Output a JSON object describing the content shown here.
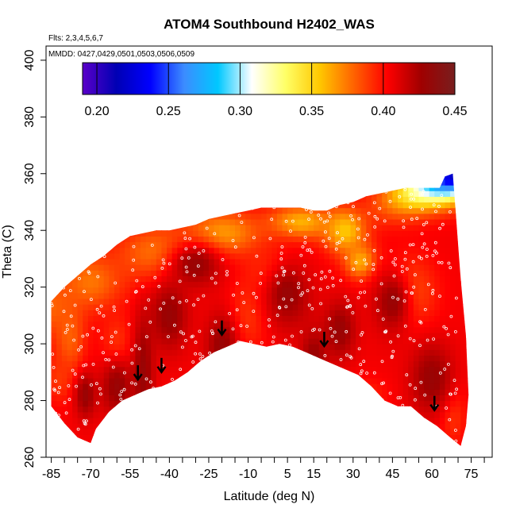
{
  "chart_data": {
    "type": "heatmap",
    "title": "ATOM4 Southbound H2402_WAS",
    "flights_note": "Flts: 2,3,4,5,6,7",
    "dates_note": "MMDD: 0427,0429,0501,0503,0506,0509",
    "xlabel": "Latitude (deg N)",
    "ylabel": "Theta (C)",
    "xlim": [
      -87,
      83
    ],
    "ylim": [
      260,
      405
    ],
    "x_ticks": [
      -85,
      -70,
      -55,
      -40,
      -25,
      -10,
      5,
      15,
      30,
      45,
      60,
      75
    ],
    "y_ticks": [
      260,
      280,
      300,
      320,
      340,
      360,
      380,
      400
    ],
    "colorbar": {
      "min": 0.19,
      "max": 0.45,
      "ticks": [
        0.2,
        0.25,
        0.3,
        0.35,
        0.4,
        0.45
      ],
      "tick_labels": [
        "0.20",
        "0.25",
        "0.30",
        "0.35",
        "0.40",
        "0.45"
      ],
      "colors": [
        "#5a00c8",
        "#0000b4",
        "#0000ff",
        "#3c8cff",
        "#00c8ff",
        "#ffffff",
        "#ffff66",
        "#ffc800",
        "#ff6400",
        "#ff0000",
        "#a00000",
        "#781e1e"
      ]
    },
    "lower_boundary": [
      [
        -85,
        278
      ],
      [
        -80,
        272
      ],
      [
        -75,
        267
      ],
      [
        -70,
        265
      ],
      [
        -68,
        270
      ],
      [
        -63,
        276
      ],
      [
        -58,
        280
      ],
      [
        -53,
        282
      ],
      [
        -48,
        284
      ],
      [
        -43,
        285
      ],
      [
        -38,
        287
      ],
      [
        -33,
        290
      ],
      [
        -28,
        294
      ],
      [
        -23,
        297
      ],
      [
        -18,
        299
      ],
      [
        -13,
        301
      ],
      [
        -8,
        300
      ],
      [
        -3,
        299
      ],
      [
        2,
        300
      ],
      [
        7,
        299
      ],
      [
        12,
        297
      ],
      [
        17,
        295
      ],
      [
        22,
        293
      ],
      [
        27,
        291
      ],
      [
        32,
        289
      ],
      [
        37,
        285
      ],
      [
        42,
        280
      ],
      [
        47,
        278
      ],
      [
        52,
        278
      ],
      [
        57,
        274
      ],
      [
        62,
        271
      ],
      [
        67,
        267
      ],
      [
        71,
        264
      ]
    ],
    "upper_boundary": [
      [
        -85,
        315
      ],
      [
        -80,
        320
      ],
      [
        -75,
        324
      ],
      [
        -70,
        328
      ],
      [
        -65,
        331
      ],
      [
        -60,
        335
      ],
      [
        -55,
        338
      ],
      [
        -50,
        339
      ],
      [
        -45,
        340
      ],
      [
        -40,
        340
      ],
      [
        -35,
        341
      ],
      [
        -30,
        342
      ],
      [
        -25,
        344
      ],
      [
        -20,
        345
      ],
      [
        -15,
        346
      ],
      [
        -10,
        347
      ],
      [
        -5,
        348
      ],
      [
        0,
        348
      ],
      [
        5,
        348
      ],
      [
        10,
        348
      ],
      [
        15,
        347
      ],
      [
        20,
        347
      ],
      [
        25,
        349
      ],
      [
        30,
        350
      ],
      [
        35,
        352
      ],
      [
        40,
        353
      ],
      [
        45,
        354
      ],
      [
        50,
        355
      ],
      [
        55,
        355
      ],
      [
        60,
        355
      ],
      [
        63,
        355
      ],
      [
        65,
        359
      ],
      [
        68,
        360
      ],
      [
        71,
        323
      ],
      [
        73,
        303
      ],
      [
        74,
        282
      ],
      [
        73,
        271
      ]
    ],
    "arrows_x": [
      -52,
      -43,
      -20,
      19,
      61
    ],
    "base_value": 0.405,
    "plume_value": 0.43,
    "plumes": [
      [
        -50,
        290,
        4,
        20
      ],
      [
        -20,
        299,
        6,
        12
      ],
      [
        15,
        295,
        5,
        10
      ],
      [
        -40,
        310,
        7,
        12
      ],
      [
        5,
        318,
        9,
        12
      ],
      [
        -60,
        285,
        6,
        10
      ],
      [
        -30,
        328,
        10,
        8
      ],
      [
        45,
        315,
        8,
        12
      ],
      [
        60,
        288,
        8,
        12
      ],
      [
        25,
        305,
        6,
        10
      ],
      [
        -72,
        282,
        4,
        8
      ]
    ],
    "cool_regions": [
      [
        -85,
        313,
        8,
        10,
        0.38
      ],
      [
        -78,
        302,
        6,
        14,
        0.38
      ],
      [
        -82,
        288,
        5,
        8,
        0.39
      ],
      [
        -70,
        322,
        12,
        10,
        0.375
      ],
      [
        -45,
        332,
        15,
        10,
        0.375
      ],
      [
        -20,
        339,
        15,
        8,
        0.365
      ],
      [
        10,
        343,
        12,
        6,
        0.36
      ],
      [
        27,
        340,
        8,
        8,
        0.355
      ],
      [
        33,
        329,
        6,
        6,
        0.36
      ],
      [
        50,
        318,
        10,
        12,
        0.375
      ],
      [
        0,
        325,
        10,
        10,
        0.385
      ],
      [
        -10,
        310,
        8,
        12,
        0.39
      ],
      [
        35,
        282,
        8,
        6,
        0.395
      ],
      [
        68,
        275,
        5,
        10,
        0.39
      ],
      [
        -60,
        300,
        6,
        10,
        0.39
      ]
    ],
    "blue_plume": {
      "peak": [
        70,
        360
      ],
      "base": [
        30,
        346
      ],
      "min_value": 0.21,
      "edge_value": 0.36
    }
  }
}
